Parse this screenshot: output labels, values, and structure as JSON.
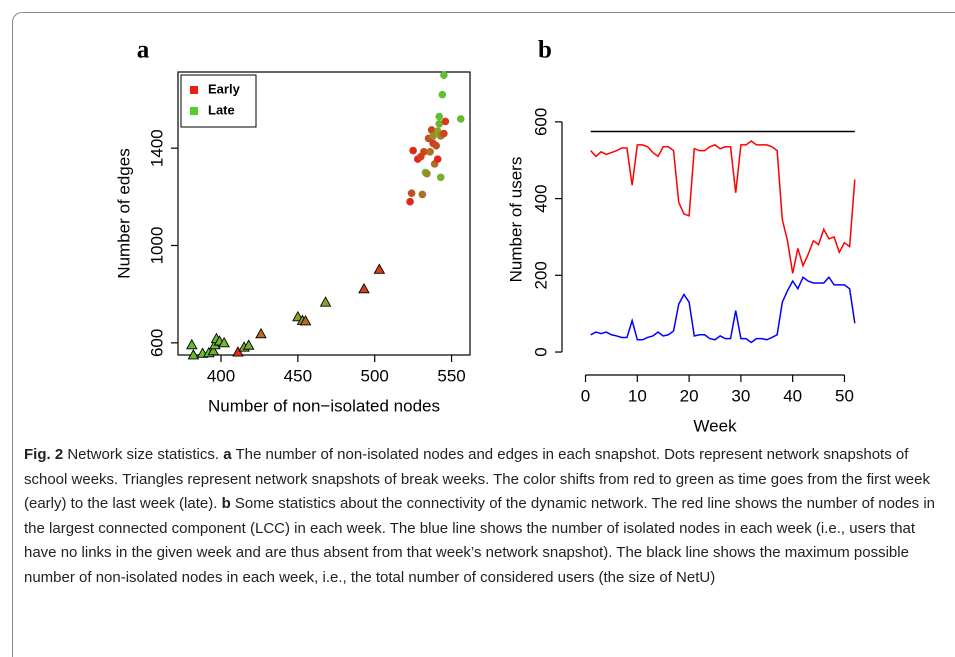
{
  "chart_data": [
    {
      "type": "scatter",
      "panel": "a",
      "xlabel": "Number of non−isolated nodes",
      "ylabel": "Number of edges",
      "xlim": [
        372,
        562
      ],
      "xticks": [
        400,
        450,
        500,
        550
      ],
      "ylim": [
        550,
        1713
      ],
      "yticks": [
        600,
        1000,
        1400
      ],
      "legend_position": "top-left",
      "legend": [
        {
          "name": "Early",
          "color": "#e8201a"
        },
        {
          "name": "Late",
          "color": "#4fd02a"
        }
      ],
      "points": [
        {
          "x": 381,
          "y": 590,
          "marker": "triangle",
          "color": "#5cc232"
        },
        {
          "x": 382,
          "y": 548,
          "marker": "triangle",
          "color": "#62bf30"
        },
        {
          "x": 388,
          "y": 555,
          "marker": "triangle",
          "color": "#68bb30"
        },
        {
          "x": 392,
          "y": 557,
          "marker": "triangle",
          "color": "#5cc232"
        },
        {
          "x": 395,
          "y": 565,
          "marker": "triangle",
          "color": "#74b22e"
        },
        {
          "x": 396,
          "y": 590,
          "marker": "triangle",
          "color": "#6cb830"
        },
        {
          "x": 397,
          "y": 615,
          "marker": "triangle",
          "color": "#60c030"
        },
        {
          "x": 399,
          "y": 605,
          "marker": "triangle",
          "color": "#7aae2e"
        },
        {
          "x": 402,
          "y": 598,
          "marker": "triangle",
          "color": "#6cb830"
        },
        {
          "x": 411,
          "y": 560,
          "marker": "triangle",
          "color": "#e02a1a"
        },
        {
          "x": 415,
          "y": 580,
          "marker": "triangle",
          "color": "#80a82c"
        },
        {
          "x": 418,
          "y": 588,
          "marker": "triangle",
          "color": "#74b22e"
        },
        {
          "x": 426,
          "y": 635,
          "marker": "triangle",
          "color": "#b86a22"
        },
        {
          "x": 450,
          "y": 705,
          "marker": "triangle",
          "color": "#86a62c"
        },
        {
          "x": 453,
          "y": 690,
          "marker": "triangle",
          "color": "#9a8a28"
        },
        {
          "x": 455,
          "y": 688,
          "marker": "triangle",
          "color": "#b06e24"
        },
        {
          "x": 468,
          "y": 765,
          "marker": "triangle",
          "color": "#8ea02a"
        },
        {
          "x": 493,
          "y": 820,
          "marker": "triangle",
          "color": "#c8461e"
        },
        {
          "x": 503,
          "y": 900,
          "marker": "triangle",
          "color": "#d83a1c"
        },
        {
          "x": 523,
          "y": 1180,
          "marker": "circle",
          "color": "#e0281a"
        },
        {
          "x": 524,
          "y": 1215,
          "marker": "circle",
          "color": "#c04e20"
        },
        {
          "x": 525,
          "y": 1390,
          "marker": "circle",
          "color": "#e0281a"
        },
        {
          "x": 528,
          "y": 1355,
          "marker": "circle",
          "color": "#e0281a"
        },
        {
          "x": 530,
          "y": 1365,
          "marker": "circle",
          "color": "#d83a1c"
        },
        {
          "x": 531,
          "y": 1210,
          "marker": "circle",
          "color": "#b06e24"
        },
        {
          "x": 532,
          "y": 1385,
          "marker": "circle",
          "color": "#c8461e"
        },
        {
          "x": 533,
          "y": 1300,
          "marker": "circle",
          "color": "#6cb830"
        },
        {
          "x": 534,
          "y": 1295,
          "marker": "circle",
          "color": "#9a8a28"
        },
        {
          "x": 535,
          "y": 1440,
          "marker": "circle",
          "color": "#c04e20"
        },
        {
          "x": 536,
          "y": 1385,
          "marker": "circle",
          "color": "#b06e24"
        },
        {
          "x": 537,
          "y": 1475,
          "marker": "circle",
          "color": "#c8461e"
        },
        {
          "x": 538,
          "y": 1420,
          "marker": "circle",
          "color": "#d83a1c"
        },
        {
          "x": 538,
          "y": 1450,
          "marker": "circle",
          "color": "#9a8a28"
        },
        {
          "x": 539,
          "y": 1335,
          "marker": "circle",
          "color": "#b06e24"
        },
        {
          "x": 540,
          "y": 1410,
          "marker": "circle",
          "color": "#c04e20"
        },
        {
          "x": 541,
          "y": 1470,
          "marker": "circle",
          "color": "#8ea02a"
        },
        {
          "x": 541,
          "y": 1355,
          "marker": "circle",
          "color": "#e0281a"
        },
        {
          "x": 542,
          "y": 1500,
          "marker": "circle",
          "color": "#74b22e"
        },
        {
          "x": 542,
          "y": 1530,
          "marker": "circle",
          "color": "#5cc232"
        },
        {
          "x": 543,
          "y": 1280,
          "marker": "circle",
          "color": "#7aae2e"
        },
        {
          "x": 543,
          "y": 1450,
          "marker": "circle",
          "color": "#a07e26"
        },
        {
          "x": 544,
          "y": 1620,
          "marker": "circle",
          "color": "#5cc232"
        },
        {
          "x": 545,
          "y": 1700,
          "marker": "circle",
          "color": "#62bf30"
        },
        {
          "x": 545,
          "y": 1460,
          "marker": "circle",
          "color": "#c8461e"
        },
        {
          "x": 546,
          "y": 1510,
          "marker": "circle",
          "color": "#d83a1c"
        },
        {
          "x": 556,
          "y": 1520,
          "marker": "circle",
          "color": "#68bb30"
        }
      ]
    },
    {
      "type": "line",
      "panel": "b",
      "xlabel": "Week",
      "ylabel": "Number of users",
      "xlim": [
        -3,
        53
      ],
      "xticks": [
        0,
        10,
        20,
        30,
        40,
        50
      ],
      "ylim": [
        -39,
        730
      ],
      "yticks": [
        0,
        200,
        400,
        600
      ],
      "x": [
        1,
        2,
        3,
        4,
        5,
        6,
        7,
        8,
        9,
        10,
        11,
        12,
        13,
        14,
        15,
        16,
        17,
        18,
        19,
        20,
        21,
        22,
        23,
        24,
        25,
        26,
        27,
        28,
        29,
        30,
        31,
        32,
        33,
        34,
        35,
        36,
        37,
        38,
        39,
        40,
        41,
        42,
        43,
        44,
        45,
        46,
        47,
        48,
        49,
        50,
        51,
        52
      ],
      "series": [
        {
          "color": "#000000",
          "values": [
            575,
            575,
            575,
            575,
            575,
            575,
            575,
            575,
            575,
            575,
            575,
            575,
            575,
            575,
            575,
            575,
            575,
            575,
            575,
            575,
            575,
            575,
            575,
            575,
            575,
            575,
            575,
            575,
            575,
            575,
            575,
            575,
            575,
            575,
            575,
            575,
            575,
            575,
            575,
            575,
            575,
            575,
            575,
            575,
            575,
            575,
            575,
            575,
            575,
            575,
            575,
            575
          ]
        },
        {
          "color": "#ff0000",
          "values": [
            525,
            510,
            522,
            515,
            520,
            525,
            532,
            532,
            435,
            540,
            540,
            535,
            520,
            510,
            535,
            535,
            525,
            390,
            360,
            355,
            530,
            525,
            525,
            535,
            540,
            530,
            535,
            535,
            415,
            540,
            540,
            550,
            540,
            540,
            540,
            535,
            525,
            345,
            290,
            205,
            270,
            225,
            255,
            290,
            280,
            320,
            295,
            300,
            260,
            285,
            275,
            450
          ]
        },
        {
          "color": "#0000ff",
          "values": [
            45,
            52,
            48,
            52,
            45,
            42,
            38,
            38,
            82,
            32,
            32,
            38,
            42,
            52,
            42,
            45,
            55,
            125,
            150,
            130,
            42,
            45,
            45,
            35,
            32,
            42,
            35,
            35,
            108,
            35,
            35,
            25,
            35,
            35,
            32,
            38,
            45,
            130,
            160,
            185,
            165,
            195,
            185,
            180,
            180,
            180,
            195,
            175,
            175,
            175,
            165,
            75
          ]
        }
      ]
    }
  ],
  "caption": [
    {
      "text": "Fig. 2",
      "bold": true
    },
    {
      "text": " Network size statistics. ",
      "bold": false
    },
    {
      "text": "a",
      "bold": true
    },
    {
      "text": " The number of non-isolated nodes and edges in each snapshot. Dots represent network snapshots of school weeks. Triangles represent network snapshots of break weeks. The color shifts from red to green as time goes from the first week (early) to the last week (late). ",
      "bold": false
    },
    {
      "text": "b",
      "bold": true
    },
    {
      "text": " Some statistics about the connectivity of the dynamic network. The red line shows the number of nodes in the largest connected component (LCC) in each week. The blue line shows the number of isolated nodes in each week (i.e., users that have no links in the given week and are thus absent from that week’s network snapshot). The black line shows the maximum possible number of non-isolated nodes in each week, i.e., the total number of considered users (the size of NetU)",
      "bold": false
    }
  ]
}
